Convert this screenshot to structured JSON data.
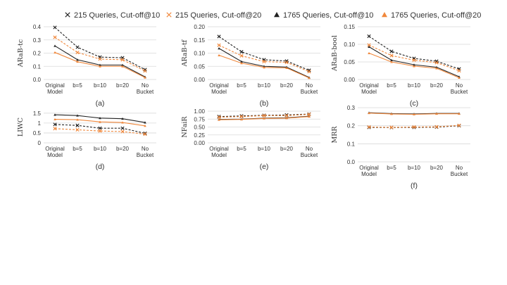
{
  "legend": {
    "entries": [
      {
        "marker": "x-mark",
        "label": "215 Queries, Cut-off@10",
        "color": "#222222"
      },
      {
        "marker": "x-mark",
        "label": "215 Queries, Cut-off@20",
        "color": "#f0883c"
      },
      {
        "marker": "triangle",
        "label": "1765 Queries, Cut-off@10",
        "color": "#222222"
      },
      {
        "marker": "triangle",
        "label": "1765 Queries, Cut-off@20",
        "color": "#f0883c"
      }
    ]
  },
  "chart_data": [
    {
      "type": "line",
      "panel_label": "(a)",
      "ylabel": "ARaB-tc",
      "categories": [
        "Original Model",
        "b=5",
        "b=10",
        "b=20",
        "No Bucket"
      ],
      "ylim": [
        0,
        0.4
      ],
      "yticks": [
        "0.0",
        "0.1",
        "0.2",
        "0.3",
        "0.4"
      ],
      "series": [
        {
          "name": "215 Queries, Cut-off@10",
          "color": "#222222",
          "values": [
            0.395,
            0.245,
            0.17,
            0.165,
            0.075
          ]
        },
        {
          "name": "215 Queries, Cut-off@20",
          "color": "#f0883c",
          "values": [
            0.32,
            0.205,
            0.155,
            0.15,
            0.065
          ]
        },
        {
          "name": "1765 Queries, Cut-off@10",
          "color": "#222222",
          "values": [
            0.255,
            0.15,
            0.11,
            0.11,
            0.02
          ]
        },
        {
          "name": "1765 Queries, Cut-off@20",
          "color": "#f0883c",
          "values": [
            0.205,
            0.135,
            0.1,
            0.1,
            0.015
          ]
        }
      ]
    },
    {
      "type": "line",
      "panel_label": "(b)",
      "ylabel": "ARaB-tf",
      "categories": [
        "Original Model",
        "b=5",
        "b=10",
        "b=20",
        "No Bucket"
      ],
      "ylim": [
        0,
        0.2
      ],
      "yticks": [
        "0.00",
        "0.05",
        "0.10",
        "0.15",
        "0.20"
      ],
      "series": [
        {
          "name": "215 Queries, Cut-off@10",
          "color": "#222222",
          "values": [
            0.163,
            0.105,
            0.075,
            0.07,
            0.035
          ]
        },
        {
          "name": "215 Queries, Cut-off@20",
          "color": "#f0883c",
          "values": [
            0.13,
            0.09,
            0.068,
            0.065,
            0.03
          ]
        },
        {
          "name": "1765 Queries, Cut-off@10",
          "color": "#222222",
          "values": [
            0.118,
            0.068,
            0.05,
            0.047,
            0.008
          ]
        },
        {
          "name": "1765 Queries, Cut-off@20",
          "color": "#f0883c",
          "values": [
            0.092,
            0.062,
            0.046,
            0.044,
            0.006
          ]
        }
      ]
    },
    {
      "type": "line",
      "panel_label": "(c)",
      "ylabel": "ARaB-bool",
      "categories": [
        "Original Model",
        "b=5",
        "b=10",
        "b=20",
        "No Bucket"
      ],
      "ylim": [
        0,
        0.15
      ],
      "yticks": [
        "0.00",
        "0.05",
        "0.10",
        "0.15"
      ],
      "series": [
        {
          "name": "215 Queries, Cut-off@10",
          "color": "#222222",
          "values": [
            0.123,
            0.08,
            0.06,
            0.052,
            0.03
          ]
        },
        {
          "name": "215 Queries, Cut-off@20",
          "color": "#f0883c",
          "values": [
            0.098,
            0.068,
            0.055,
            0.048,
            0.025
          ]
        },
        {
          "name": "1765 Queries, Cut-off@10",
          "color": "#222222",
          "values": [
            0.093,
            0.055,
            0.042,
            0.035,
            0.008
          ]
        },
        {
          "name": "1765 Queries, Cut-off@20",
          "color": "#f0883c",
          "values": [
            0.075,
            0.05,
            0.038,
            0.032,
            0.005
          ]
        }
      ]
    },
    {
      "type": "line",
      "panel_label": "(d)",
      "ylabel": "LIWC",
      "categories": [
        "Original Model",
        "b=5",
        "b=10",
        "b=20",
        "No Bucket"
      ],
      "ylim": [
        0,
        1.6
      ],
      "yticks": [
        "0",
        "0.5",
        "1",
        "1.5"
      ],
      "series": [
        {
          "name": "215 Queries, Cut-off@10",
          "color": "#222222",
          "values": [
            0.93,
            0.88,
            0.74,
            0.74,
            0.48
          ]
        },
        {
          "name": "215 Queries, Cut-off@20",
          "color": "#f0883c",
          "values": [
            0.72,
            0.66,
            0.6,
            0.57,
            0.44
          ]
        },
        {
          "name": "1765 Queries, Cut-off@10",
          "color": "#222222",
          "values": [
            1.42,
            1.38,
            1.25,
            1.22,
            1.03
          ]
        },
        {
          "name": "1765 Queries, Cut-off@20",
          "color": "#f0883c",
          "values": [
            1.19,
            1.17,
            1.06,
            1.03,
            0.86
          ]
        }
      ]
    },
    {
      "type": "line",
      "panel_label": "(e)",
      "ylabel": "NFaiR",
      "categories": [
        "Original Model",
        "b=5",
        "b=10",
        "b=20",
        "No Bucket"
      ],
      "ylim": [
        0,
        1.0
      ],
      "yticks": [
        "0.00",
        "0.25",
        "0.50",
        "0.75",
        "1.00"
      ],
      "series": [
        {
          "name": "215 Queries, Cut-off@10",
          "color": "#222222",
          "values": [
            0.83,
            0.85,
            0.87,
            0.88,
            0.91
          ]
        },
        {
          "name": "215 Queries, Cut-off@20",
          "color": "#f0883c",
          "values": [
            0.81,
            0.83,
            0.86,
            0.86,
            0.9
          ]
        },
        {
          "name": "1765 Queries, Cut-off@10",
          "color": "#222222",
          "values": [
            0.74,
            0.75,
            0.78,
            0.79,
            0.84
          ]
        },
        {
          "name": "1765 Queries, Cut-off@20",
          "color": "#f0883c",
          "values": [
            0.73,
            0.74,
            0.77,
            0.78,
            0.83
          ]
        }
      ]
    },
    {
      "type": "line",
      "panel_label": "(f)",
      "ylabel": "MRR",
      "categories": [
        "Original Model",
        "b=5",
        "b=10",
        "b=20",
        "No Bucket"
      ],
      "ylim": [
        0,
        0.3
      ],
      "yticks": [
        "0.0",
        "0.1",
        "0.2",
        "0.3"
      ],
      "series": [
        {
          "name": "215 Queries, Cut-off@10",
          "color": "#222222",
          "values": [
            0.191,
            0.19,
            0.191,
            0.192,
            0.2
          ]
        },
        {
          "name": "215 Queries, Cut-off@20",
          "color": "#f0883c",
          "values": [
            0.193,
            0.191,
            0.193,
            0.194,
            0.202
          ]
        },
        {
          "name": "1765 Queries, Cut-off@10",
          "color": "#222222",
          "values": [
            0.272,
            0.267,
            0.265,
            0.268,
            0.268
          ]
        },
        {
          "name": "1765 Queries, Cut-off@20",
          "color": "#f0883c",
          "values": [
            0.27,
            0.265,
            0.263,
            0.266,
            0.266
          ]
        }
      ]
    }
  ]
}
